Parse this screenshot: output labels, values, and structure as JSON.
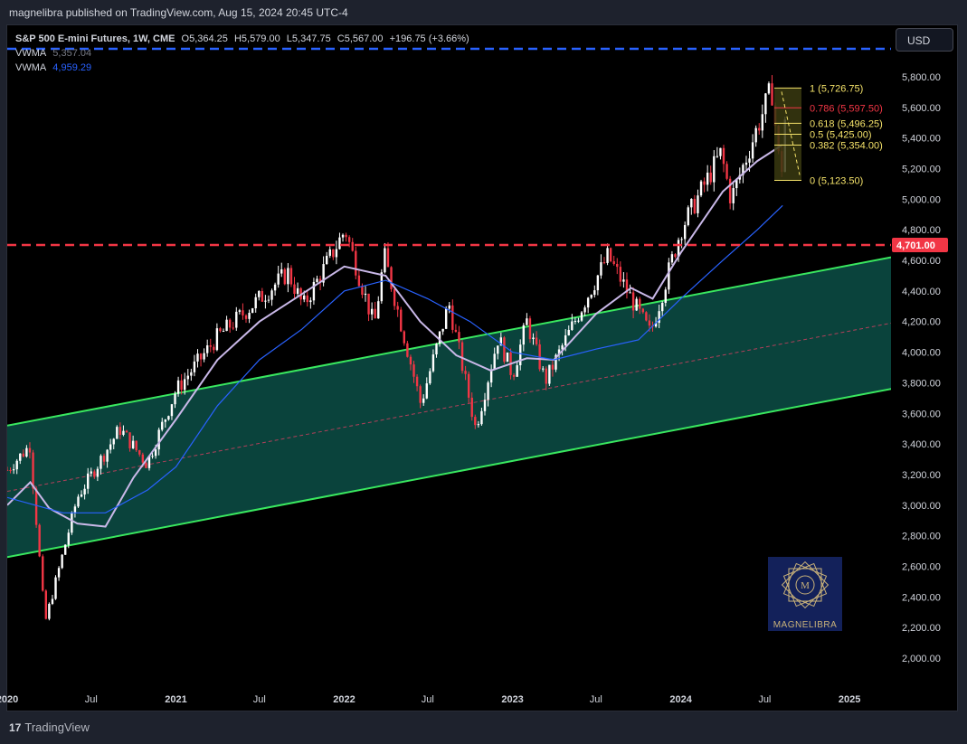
{
  "header": {
    "published": "magnelibra published on TradingView.com, Aug 15, 2024 20:45 UTC-4"
  },
  "legend": {
    "symbol": "S&P 500 E-mini Futures, 1W, CME",
    "open": "O5,364.25",
    "high": "H5,579.00",
    "low": "L5,347.75",
    "close": "C5,567.00",
    "change": "+196.75 (+3.66%)",
    "vwma1_label": "VWMA",
    "vwma1_value": "5,357.04",
    "vwma2_label": "VWMA",
    "vwma2_value": "4,959.29"
  },
  "currency": "USD",
  "footer": {
    "brand": "TradingView",
    "logo": "17"
  },
  "watermark": {
    "text": "MAGNELIBRA"
  },
  "colors": {
    "up": "#ffffff",
    "down": "#f23645",
    "channel_line": "#39e75f",
    "channel_fill": "#0b4a42",
    "vwma_fast": "#c9b8e8",
    "vwma_slow": "#2962ff",
    "level_red": "#f23645",
    "level_blue": "#2962ff",
    "fib": "#f5e36a"
  },
  "chart_data": {
    "type": "candlestick",
    "x_ticks": [
      "2020",
      "Jul",
      "2021",
      "Jul",
      "2022",
      "Jul",
      "2023",
      "Jul",
      "2024",
      "Jul",
      "2025"
    ],
    "y_ticks": [
      "5,800.00",
      "5,600.00",
      "5,400.00",
      "5,200.00",
      "5,000.00",
      "4,800.00",
      "4,600.00",
      "4,400.00",
      "4,200.00",
      "4,000.00",
      "3,800.00",
      "3,600.00",
      "3,400.00",
      "3,200.00",
      "3,000.00",
      "2,800.00",
      "2,600.00",
      "2,400.00",
      "2,200.00",
      "2,000.00"
    ],
    "ylim": [
      1850,
      5980
    ],
    "xlim": [
      "2020-01-01",
      "2025-04-01"
    ],
    "horizontal_levels": [
      {
        "value": 4701,
        "label": "4,701.00",
        "color": "red",
        "style": "dashed"
      },
      {
        "value": 5975,
        "label": "",
        "color": "blue",
        "style": "dashed"
      }
    ],
    "fibonacci": [
      {
        "ratio": "1",
        "value": "5,726.75",
        "y": 5726.75
      },
      {
        "ratio": "0.786",
        "value": "5,597.50",
        "y": 5597.5
      },
      {
        "ratio": "0.618",
        "value": "5,496.25",
        "y": 5496.25
      },
      {
        "ratio": "0.5",
        "value": "5,425.00",
        "y": 5425
      },
      {
        "ratio": "0.382",
        "value": "5,354.00",
        "y": 5354
      },
      {
        "ratio": "0",
        "value": "5,123.50",
        "y": 5123.5
      }
    ],
    "channel": {
      "upper": [
        [
          "2020-01-01",
          3520
        ],
        [
          "2025-04-01",
          4620
        ]
      ],
      "lower": [
        [
          "2020-01-01",
          2660
        ],
        [
          "2025-04-01",
          3760
        ]
      ],
      "mid": [
        [
          "2020-01-01",
          3090
        ],
        [
          "2025-04-01",
          4190
        ]
      ]
    },
    "series": [
      {
        "name": "VWMA",
        "value_label": "5,357.04",
        "points": [
          [
            "2020-01-01",
            3000
          ],
          [
            "2020-02-20",
            3150
          ],
          [
            "2020-04-01",
            2980
          ],
          [
            "2020-06-01",
            2880
          ],
          [
            "2020-08-01",
            2860
          ],
          [
            "2020-10-01",
            3180
          ],
          [
            "2021-01-01",
            3560
          ],
          [
            "2021-04-01",
            3950
          ],
          [
            "2021-07-01",
            4200
          ],
          [
            "2021-10-01",
            4380
          ],
          [
            "2022-01-01",
            4560
          ],
          [
            "2022-04-01",
            4500
          ],
          [
            "2022-06-15",
            4200
          ],
          [
            "2022-09-01",
            3980
          ],
          [
            "2022-11-15",
            3880
          ],
          [
            "2023-02-01",
            3960
          ],
          [
            "2023-04-01",
            3950
          ],
          [
            "2023-07-01",
            4250
          ],
          [
            "2023-09-15",
            4420
          ],
          [
            "2023-11-01",
            4350
          ],
          [
            "2024-01-01",
            4650
          ],
          [
            "2024-04-01",
            5050
          ],
          [
            "2024-06-15",
            5250
          ],
          [
            "2024-08-09",
            5357
          ]
        ]
      },
      {
        "name": "VWMA",
        "value_label": "4,959.29",
        "points": [
          [
            "2020-01-01",
            3050
          ],
          [
            "2020-05-01",
            2950
          ],
          [
            "2020-08-01",
            2950
          ],
          [
            "2020-11-01",
            3100
          ],
          [
            "2021-01-01",
            3250
          ],
          [
            "2021-04-01",
            3650
          ],
          [
            "2021-07-01",
            3950
          ],
          [
            "2021-10-01",
            4150
          ],
          [
            "2022-01-01",
            4400
          ],
          [
            "2022-04-01",
            4470
          ],
          [
            "2022-07-01",
            4350
          ],
          [
            "2022-10-01",
            4200
          ],
          [
            "2023-01-01",
            4000
          ],
          [
            "2023-04-01",
            3950
          ],
          [
            "2023-07-01",
            4020
          ],
          [
            "2023-10-01",
            4080
          ],
          [
            "2024-01-01",
            4350
          ],
          [
            "2024-04-01",
            4600
          ],
          [
            "2024-06-15",
            4800
          ],
          [
            "2024-08-09",
            4959
          ]
        ]
      }
    ],
    "weekly_close_path": [
      [
        "2020-01-01",
        3230
      ],
      [
        "2020-02-19",
        3390
      ],
      [
        "2020-03-23",
        2230
      ],
      [
        "2020-06-01",
        3050
      ],
      [
        "2020-09-01",
        3500
      ],
      [
        "2020-10-30",
        3270
      ],
      [
        "2021-01-01",
        3750
      ],
      [
        "2021-04-01",
        4100
      ],
      [
        "2021-07-01",
        4350
      ],
      [
        "2021-09-01",
        4520
      ],
      [
        "2021-10-04",
        4300
      ],
      [
        "2022-01-03",
        4800
      ],
      [
        "2022-03-07",
        4170
      ],
      [
        "2022-03-29",
        4630
      ],
      [
        "2022-06-16",
        3660
      ],
      [
        "2022-08-16",
        4320
      ],
      [
        "2022-10-13",
        3500
      ],
      [
        "2022-12-01",
        4100
      ],
      [
        "2023-01-01",
        3850
      ],
      [
        "2023-02-01",
        4200
      ],
      [
        "2023-03-13",
        3810
      ],
      [
        "2023-06-01",
        4300
      ],
      [
        "2023-07-27",
        4630
      ],
      [
        "2023-10-27",
        4120
      ],
      [
        "2024-01-01",
        4800
      ],
      [
        "2024-03-28",
        5300
      ],
      [
        "2024-04-19",
        5000
      ],
      [
        "2024-07-16",
        5726
      ],
      [
        "2024-08-05",
        5123
      ],
      [
        "2024-08-15",
        5567
      ]
    ]
  }
}
